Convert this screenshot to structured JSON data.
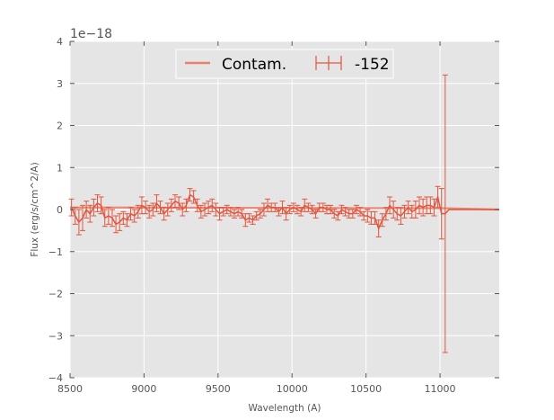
{
  "chart_data": {
    "type": "line",
    "xlabel": "Wavelength (A)",
    "ylabel": "Flux (erg/s/cm^2/A)",
    "offset_label": "1e−18",
    "xlim": [
      8500,
      11400
    ],
    "ylim": [
      -4,
      4
    ],
    "x_ticks": [
      8500,
      9000,
      9500,
      10000,
      10500,
      11000
    ],
    "y_ticks": [
      -4,
      -3,
      -2,
      -1,
      0,
      1,
      2,
      3,
      4
    ],
    "x_tick_labels": [
      "8500",
      "9000",
      "9500",
      "10000",
      "10500",
      "11000"
    ],
    "y_tick_labels": [
      "−4",
      "−3",
      "−2",
      "−1",
      "0",
      "1",
      "2",
      "3",
      "4"
    ],
    "grid": true,
    "background": "#e5e5e5",
    "legend_position": "top-center",
    "series": [
      {
        "name": "Contam.",
        "color": "#e8806b",
        "style": "line",
        "x": [
          8500,
          11050,
          11400
        ],
        "y": [
          0.05,
          0.03,
          0.0
        ]
      },
      {
        "name": "-152",
        "color": "#e2563e",
        "style": "errorbar-line",
        "x": [
          8510,
          8535,
          8560,
          8585,
          8610,
          8635,
          8660,
          8685,
          8710,
          8735,
          8760,
          8785,
          8810,
          8835,
          8860,
          8885,
          8910,
          8935,
          8960,
          8985,
          9010,
          9035,
          9060,
          9085,
          9110,
          9135,
          9160,
          9185,
          9210,
          9235,
          9260,
          9285,
          9310,
          9335,
          9360,
          9385,
          9410,
          9435,
          9460,
          9485,
          9510,
          9535,
          9560,
          9585,
          9610,
          9635,
          9660,
          9685,
          9710,
          9735,
          9760,
          9785,
          9810,
          9835,
          9860,
          9885,
          9910,
          9935,
          9960,
          9985,
          10010,
          10035,
          10060,
          10085,
          10110,
          10135,
          10160,
          10185,
          10210,
          10235,
          10260,
          10285,
          10310,
          10335,
          10360,
          10385,
          10410,
          10435,
          10460,
          10485,
          10510,
          10535,
          10560,
          10585,
          10610,
          10635,
          10660,
          10685,
          10710,
          10735,
          10760,
          10785,
          10810,
          10835,
          10860,
          10885,
          10910,
          10935,
          10960,
          10985,
          11010,
          11035,
          11060,
          11400
        ],
        "y": [
          0.05,
          -0.15,
          -0.3,
          -0.2,
          0.0,
          -0.1,
          0.05,
          0.15,
          0.1,
          -0.2,
          -0.15,
          -0.2,
          -0.35,
          -0.3,
          -0.2,
          -0.25,
          -0.1,
          -0.15,
          -0.05,
          0.1,
          0.05,
          -0.05,
          0.0,
          0.15,
          0.05,
          -0.1,
          0.0,
          0.1,
          0.2,
          0.15,
          0.0,
          0.1,
          0.35,
          0.3,
          0.1,
          -0.05,
          0.0,
          0.05,
          0.1,
          0.0,
          -0.1,
          -0.05,
          0.0,
          -0.05,
          -0.1,
          -0.05,
          -0.1,
          -0.25,
          -0.2,
          -0.25,
          -0.15,
          -0.1,
          0.0,
          0.1,
          0.05,
          0.05,
          -0.05,
          0.05,
          -0.1,
          0.0,
          0.05,
          0.0,
          -0.05,
          0.1,
          0.05,
          0.0,
          -0.1,
          0.05,
          0.05,
          0.0,
          0.0,
          -0.1,
          -0.15,
          0.0,
          -0.05,
          -0.1,
          -0.1,
          0.0,
          -0.05,
          -0.15,
          -0.15,
          -0.2,
          -0.2,
          -0.45,
          -0.25,
          -0.1,
          0.1,
          0.0,
          -0.1,
          -0.15,
          -0.05,
          0.05,
          -0.05,
          0.0,
          0.1,
          0.05,
          0.1,
          0.1,
          0.05,
          0.3,
          -0.1,
          -0.1,
          0.0,
          0.0
        ],
        "yerr": [
          0.2,
          0.2,
          0.3,
          0.3,
          0.2,
          0.2,
          0.2,
          0.2,
          0.2,
          0.2,
          0.2,
          0.2,
          0.2,
          0.2,
          0.15,
          0.15,
          0.15,
          0.15,
          0.15,
          0.2,
          0.15,
          0.15,
          0.15,
          0.2,
          0.15,
          0.15,
          0.15,
          0.15,
          0.15,
          0.15,
          0.15,
          0.15,
          0.15,
          0.15,
          0.15,
          0.15,
          0.15,
          0.15,
          0.15,
          0.15,
          0.15,
          0.1,
          0.1,
          0.1,
          0.1,
          0.1,
          0.1,
          0.15,
          0.1,
          0.1,
          0.1,
          0.1,
          0.15,
          0.15,
          0.1,
          0.1,
          0.1,
          0.15,
          0.15,
          0.1,
          0.1,
          0.1,
          0.1,
          0.15,
          0.1,
          0.1,
          0.1,
          0.1,
          0.1,
          0.1,
          0.1,
          0.1,
          0.1,
          0.1,
          0.1,
          0.1,
          0.1,
          0.1,
          0.1,
          0.1,
          0.15,
          0.15,
          0.15,
          0.2,
          0.15,
          0.15,
          0.2,
          0.2,
          0.15,
          0.2,
          0.15,
          0.15,
          0.15,
          0.2,
          0.2,
          0.2,
          0.2,
          0.2,
          0.2,
          0.25,
          0.6,
          3.3,
          0,
          0
        ]
      }
    ]
  }
}
